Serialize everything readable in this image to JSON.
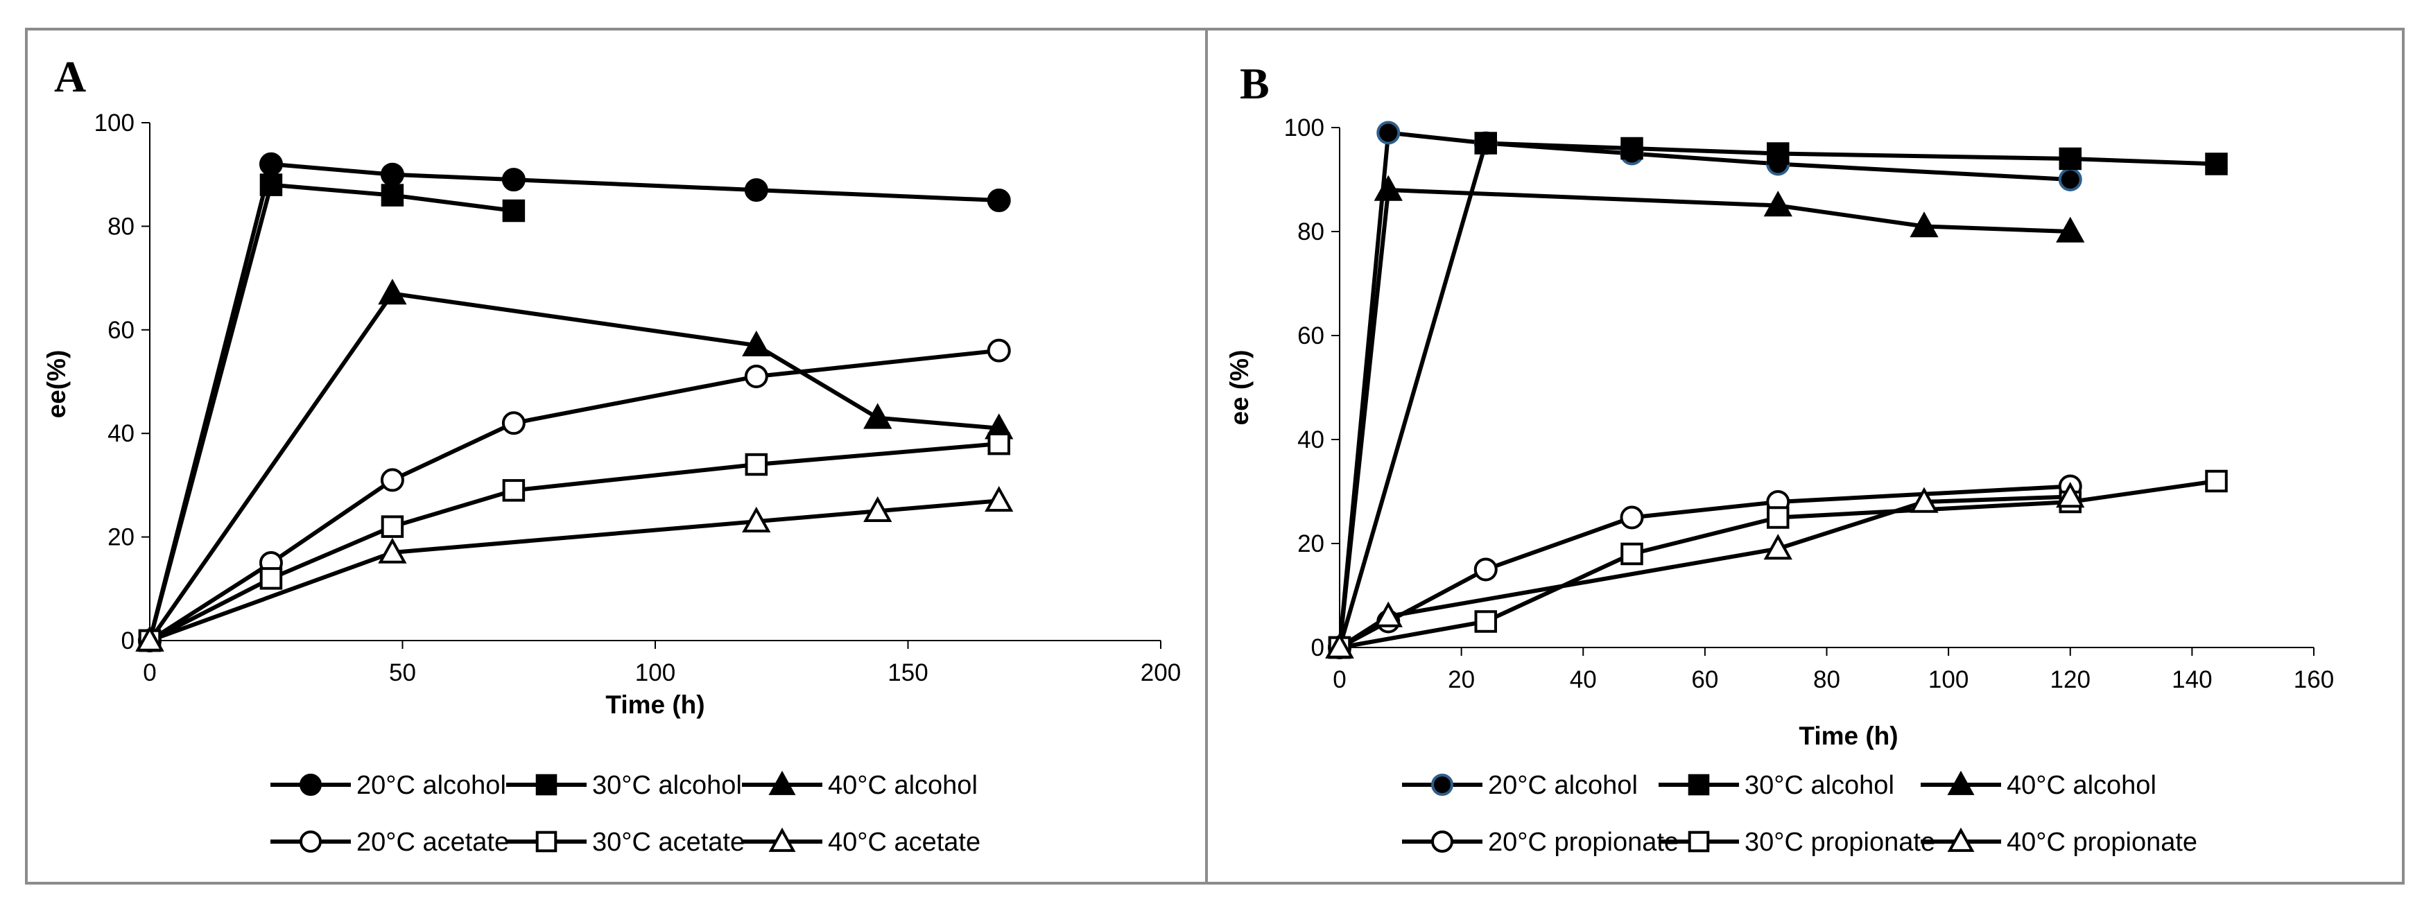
{
  "chart_data": [
    {
      "panel_label": "A",
      "type": "line",
      "xlabel": "Time (h)",
      "ylabel": "ee(%)",
      "xlim": [
        0,
        200
      ],
      "ylim": [
        0,
        100
      ],
      "xticks": [
        0,
        50,
        100,
        150,
        200
      ],
      "yticks": [
        0,
        20,
        40,
        60,
        80,
        100
      ],
      "legend_position": "bottom",
      "series": [
        {
          "name": "20°C alcohol",
          "marker": "circle",
          "filled": true,
          "x": [
            0,
            24,
            48,
            72,
            120,
            168
          ],
          "y": [
            0,
            92,
            90,
            89,
            87,
            85
          ]
        },
        {
          "name": "30°C alcohol",
          "marker": "square",
          "filled": true,
          "x": [
            0,
            24,
            48,
            72
          ],
          "y": [
            0,
            88,
            86,
            83
          ]
        },
        {
          "name": "40°C alcohol",
          "marker": "triangle",
          "filled": true,
          "x": [
            0,
            48,
            120,
            144,
            168
          ],
          "y": [
            0,
            67,
            57,
            43,
            41
          ]
        },
        {
          "name": "20°C acetate",
          "marker": "circle",
          "filled": false,
          "x": [
            0,
            24,
            48,
            72,
            120,
            168
          ],
          "y": [
            0,
            15,
            31,
            42,
            51,
            56
          ]
        },
        {
          "name": "30°C acetate",
          "marker": "square",
          "filled": false,
          "x": [
            0,
            24,
            48,
            72,
            120,
            168
          ],
          "y": [
            0,
            12,
            22,
            29,
            34,
            38
          ]
        },
        {
          "name": "40°C acetate",
          "marker": "triangle",
          "filled": false,
          "x": [
            0,
            48,
            120,
            144,
            168
          ],
          "y": [
            0,
            17,
            23,
            25,
            27
          ]
        }
      ]
    },
    {
      "panel_label": "B",
      "type": "line",
      "xlabel": "Time (h)",
      "ylabel": "ee (%)",
      "xlim": [
        0,
        160
      ],
      "ylim": [
        0,
        100
      ],
      "xticks": [
        0,
        20,
        40,
        60,
        80,
        100,
        120,
        140,
        160
      ],
      "yticks": [
        0,
        20,
        40,
        60,
        80,
        100
      ],
      "legend_position": "bottom",
      "series": [
        {
          "name": "20°C alcohol",
          "marker": "circle",
          "filled": true,
          "marker_edge": "#2e5f8a",
          "x": [
            0,
            8,
            24,
            48,
            72,
            120
          ],
          "y": [
            0,
            99,
            97,
            95,
            93,
            90
          ]
        },
        {
          "name": "30°C alcohol",
          "marker": "square",
          "filled": true,
          "x": [
            0,
            24,
            48,
            72,
            120,
            144
          ],
          "y": [
            0,
            97,
            96,
            95,
            94,
            93
          ]
        },
        {
          "name": "40°C alcohol",
          "marker": "triangle",
          "filled": true,
          "x": [
            0,
            8,
            72,
            96,
            120
          ],
          "y": [
            0,
            88,
            85,
            81,
            80
          ]
        },
        {
          "name": "20°C propionate",
          "marker": "circle",
          "filled": false,
          "x": [
            0,
            8,
            24,
            48,
            72,
            120
          ],
          "y": [
            0,
            5,
            15,
            25,
            28,
            31
          ]
        },
        {
          "name": "30°C propionate",
          "marker": "square",
          "filled": false,
          "x": [
            0,
            24,
            48,
            72,
            120,
            144
          ],
          "y": [
            0,
            5,
            18,
            25,
            28,
            32
          ]
        },
        {
          "name": "40°C propionate",
          "marker": "triangle",
          "filled": false,
          "x": [
            0,
            8,
            72,
            96,
            120
          ],
          "y": [
            0,
            6,
            19,
            28,
            29
          ]
        }
      ]
    }
  ]
}
